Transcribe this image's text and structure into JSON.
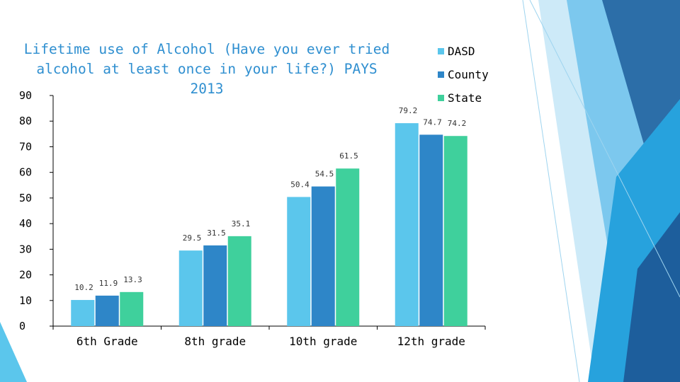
{
  "colors": {
    "dasd": "#5bc6ec",
    "county": "#2e86c8",
    "state": "#3fd09c",
    "title": "#2f8fd0"
  },
  "chart_data": {
    "type": "bar",
    "title": "Lifetime use of Alcohol (Have you ever tried alcohol at least once in your life?) PAYS 2013",
    "title_line1": "Lifetime use of Alcohol (Have you ever tried",
    "title_line2": "alcohol at least once in your life?) PAYS 2013",
    "categories": [
      "6th Grade",
      "8th grade",
      "10th grade",
      "12th grade"
    ],
    "series": [
      {
        "name": "DASD",
        "values": [
          10.2,
          29.5,
          50.4,
          79.2
        ]
      },
      {
        "name": "County",
        "values": [
          11.9,
          31.5,
          54.5,
          74.7
        ]
      },
      {
        "name": "State",
        "values": [
          13.3,
          35.1,
          61.5,
          74.2
        ]
      }
    ],
    "yticks": [
      "0",
      "10",
      "20",
      "30",
      "40",
      "50",
      "60",
      "70",
      "80",
      "90"
    ],
    "ylim": [
      0,
      90
    ],
    "xlabel": "",
    "ylabel": "",
    "legend_position": "top-right",
    "grid": false
  }
}
